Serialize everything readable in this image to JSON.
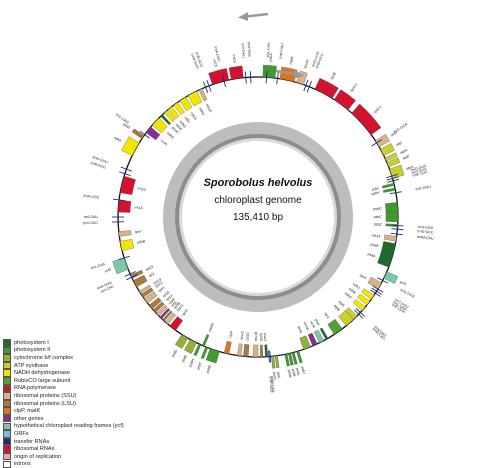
{
  "center": {
    "species": "Sporobolus helvolus",
    "subtitle": "chloroplast genome",
    "length": "135,410 bp"
  },
  "legend": [
    {
      "label": "photosystem I",
      "color": "#1e6b2a"
    },
    {
      "label": "photosystem II",
      "color": "#3f9a2f"
    },
    {
      "label": "cytochrome b/f complex",
      "color": "#8fb23a"
    },
    {
      "label": "ATP synthase",
      "color": "#c9cf2f"
    },
    {
      "label": "NADH dehydrogenase",
      "color": "#f2e600"
    },
    {
      "label": "RubisCO large subunit",
      "color": "#52a233"
    },
    {
      "label": "RNA polymerase",
      "color": "#d1132f"
    },
    {
      "label": "ribosomal proteins (SSU)",
      "color": "#d9b28b"
    },
    {
      "label": "ribosomal proteins (LSU)",
      "color": "#a67a40"
    },
    {
      "label": "clpP, matK",
      "color": "#e4721d"
    },
    {
      "label": "other genes",
      "color": "#8b2c8e"
    },
    {
      "label": "hypothetical chloroplast reading frames (ycf)",
      "color": "#7ec7a8"
    },
    {
      "label": "ORFs",
      "color": "#83b8df"
    },
    {
      "label": "transfer RNAs",
      "color": "#1c2a86"
    },
    {
      "label": "ribosomal RNAs",
      "color": "#d1132f"
    },
    {
      "label": "origin of replication",
      "color": "#f0a0a8"
    },
    {
      "label": "introns",
      "color": "#ffffff"
    }
  ],
  "genes": [
    {
      "name": "psbA",
      "a": 2,
      "w": 5,
      "out": true,
      "color": "#3f9a2f"
    },
    {
      "name": "matK",
      "a": 9,
      "w": 6,
      "out": true,
      "color": "#e4721d"
    },
    {
      "name": "rps16",
      "a": 16,
      "w": 3,
      "out": true,
      "color": "#d9b28b"
    },
    {
      "name": "rpoB",
      "a": 24,
      "w": 8,
      "out": true,
      "color": "#d1132f"
    },
    {
      "name": "rpoC1",
      "a": 33,
      "w": 7,
      "out": true,
      "color": "#d1132f"
    },
    {
      "name": "rpoC2",
      "a": 42,
      "w": 12,
      "out": true,
      "color": "#d1132f"
    },
    {
      "name": "rps2",
      "a": 57,
      "w": 3,
      "out": true,
      "color": "#d9b28b"
    },
    {
      "name": "atpI",
      "a": 61,
      "w": 3,
      "out": true,
      "color": "#c9cf2f"
    },
    {
      "name": "atpH",
      "a": 65,
      "w": 1.5,
      "out": true,
      "color": "#c9cf2f"
    },
    {
      "name": "atpF",
      "a": 67,
      "w": 2,
      "out": true,
      "color": "#c9cf2f"
    },
    {
      "name": "atpA",
      "a": 70,
      "w": 4,
      "out": true,
      "color": "#c9cf2f"
    },
    {
      "name": "psbI",
      "a": 76,
      "w": 1,
      "out": false,
      "color": "#3f9a2f"
    },
    {
      "name": "psbK",
      "a": 78,
      "w": 1,
      "out": false,
      "color": "#3f9a2f"
    },
    {
      "name": "psbD",
      "a": 84,
      "w": 4,
      "out": false,
      "color": "#3f9a2f"
    },
    {
      "name": "psbC",
      "a": 88,
      "w": 4,
      "out": false,
      "color": "#3f9a2f"
    },
    {
      "name": "psbZ",
      "a": 93,
      "w": 1,
      "out": false,
      "color": "#3f9a2f"
    },
    {
      "name": "rps14",
      "a": 98,
      "w": 2,
      "out": false,
      "color": "#d9b28b"
    },
    {
      "name": "psaB",
      "a": 101,
      "w": 5,
      "out": false,
      "color": "#1e6b2a"
    },
    {
      "name": "psaA",
      "a": 106,
      "w": 5,
      "out": false,
      "color": "#1e6b2a"
    },
    {
      "name": "ycf3",
      "a": 113,
      "w": 3,
      "out": true,
      "color": "#7ec7a8"
    },
    {
      "name": "rps4",
      "a": 118,
      "w": 3,
      "out": false,
      "color": "#d9b28b"
    },
    {
      "name": "ndhJ",
      "a": 124,
      "w": 2,
      "out": false,
      "color": "#f2e600"
    },
    {
      "name": "ndhK",
      "a": 127,
      "w": 2,
      "out": false,
      "color": "#f2e600"
    },
    {
      "name": "ndhC",
      "a": 130,
      "w": 2,
      "out": false,
      "color": "#f2e600"
    },
    {
      "name": "atpE",
      "a": 135,
      "w": 2,
      "out": false,
      "color": "#c9cf2f"
    },
    {
      "name": "atpB",
      "a": 137,
      "w": 4,
      "out": false,
      "color": "#c9cf2f"
    },
    {
      "name": "rbcL",
      "a": 143,
      "w": 4,
      "out": false,
      "color": "#52a233"
    },
    {
      "name": "psaI",
      "a": 150,
      "w": 1,
      "out": false,
      "color": "#1e6b2a"
    },
    {
      "name": "ycf4",
      "a": 152,
      "w": 2,
      "out": false,
      "color": "#7ec7a8"
    },
    {
      "name": "cemA",
      "a": 155,
      "w": 2,
      "out": false,
      "color": "#8b2c8e"
    },
    {
      "name": "petA",
      "a": 158,
      "w": 3,
      "out": false,
      "color": "#8fb23a"
    },
    {
      "name": "psbJ",
      "a": 163,
      "w": 1,
      "out": true,
      "color": "#3f9a2f"
    },
    {
      "name": "psbL",
      "a": 165,
      "w": 1,
      "out": true,
      "color": "#3f9a2f"
    },
    {
      "name": "psbF",
      "a": 166.5,
      "w": 1,
      "out": true,
      "color": "#3f9a2f"
    },
    {
      "name": "psbE",
      "a": 168,
      "w": 1,
      "out": true,
      "color": "#3f9a2f"
    },
    {
      "name": "petL",
      "a": 172,
      "w": 1,
      "out": true,
      "color": "#8fb23a"
    },
    {
      "name": "petG",
      "a": 173.5,
      "w": 1,
      "out": true,
      "color": "#8fb23a"
    },
    {
      "name": "psaJ",
      "a": 176,
      "w": 1,
      "out": false,
      "color": "#1e6b2a"
    },
    {
      "name": "rpl33",
      "a": 178,
      "w": 1,
      "out": false,
      "color": "#a67a40"
    },
    {
      "name": "rps18",
      "a": 180,
      "w": 2,
      "out": false,
      "color": "#d9b28b"
    },
    {
      "name": "rpl20",
      "a": 184,
      "w": 2,
      "out": false,
      "color": "#a67a40"
    },
    {
      "name": "rps12",
      "a": 187,
      "w": 1.5,
      "out": false,
      "color": "#d9b28b"
    },
    {
      "name": "clpP",
      "a": 192,
      "w": 2,
      "out": false,
      "color": "#e4721d"
    },
    {
      "name": "psbB",
      "a": 196,
      "w": 4,
      "out": true,
      "color": "#3f9a2f"
    },
    {
      "name": "psbT",
      "a": 201,
      "w": 1,
      "out": true,
      "color": "#3f9a2f"
    },
    {
      "name": "psbN",
      "a": 202.5,
      "w": 1,
      "out": false,
      "color": "#3f9a2f"
    },
    {
      "name": "psbH",
      "a": 204,
      "w": 1,
      "out": true,
      "color": "#3f9a2f"
    },
    {
      "name": "petB",
      "a": 206,
      "w": 3,
      "out": true,
      "color": "#8fb23a"
    },
    {
      "name": "petD",
      "a": 210,
      "w": 3,
      "out": true,
      "color": "#8fb23a"
    },
    {
      "name": "rpoA",
      "a": 216,
      "w": 3,
      "out": false,
      "color": "#d1132f"
    },
    {
      "name": "rps11",
      "a": 220,
      "w": 1.5,
      "out": false,
      "color": "#d9b28b"
    },
    {
      "name": "rpl36",
      "a": 222,
      "w": 1,
      "out": false,
      "color": "#a67a40"
    },
    {
      "name": "infA",
      "a": 223.5,
      "w": 1,
      "out": false,
      "color": "#8b2c8e"
    },
    {
      "name": "rps8",
      "a": 225,
      "w": 1.5,
      "out": false,
      "color": "#d9b28b"
    },
    {
      "name": "rpl14",
      "a": 227,
      "w": 1.5,
      "out": false,
      "color": "#a67a40"
    },
    {
      "name": "rpl16",
      "a": 229,
      "w": 2,
      "out": false,
      "color": "#a67a40"
    },
    {
      "name": "rps3",
      "a": 232,
      "w": 2.5,
      "out": false,
      "color": "#d9b28b"
    },
    {
      "name": "rpl22",
      "a": 235,
      "w": 1.5,
      "out": false,
      "color": "#a67a40"
    },
    {
      "name": "rps19",
      "a": 237,
      "w": 1,
      "out": false,
      "color": "#d9b28b"
    },
    {
      "name": "rpl2",
      "a": 240,
      "w": 3,
      "out": false,
      "color": "#a67a40"
    },
    {
      "name": "rpl23",
      "a": 244,
      "w": 1.5,
      "out": false,
      "color": "#a67a40"
    },
    {
      "name": "ycf2",
      "a": 248,
      "w": 5,
      "out": true,
      "color": "#7ec7a8"
    },
    {
      "name": "ndhB",
      "a": 256,
      "w": 4,
      "out": false,
      "color": "#f2e600"
    },
    {
      "name": "rps7",
      "a": 262,
      "w": 2,
      "out": false,
      "color": "#d9b28b"
    },
    {
      "name": "rrn16",
      "a": 272,
      "w": 5,
      "out": false,
      "color": "#d1132f"
    },
    {
      "name": "rrn23",
      "a": 280,
      "w": 7,
      "out": false,
      "color": "#d1132f"
    },
    {
      "name": "ndhF",
      "a": 296,
      "w": 6,
      "out": true,
      "color": "#f2e600"
    },
    {
      "name": "rpl32",
      "a": 304,
      "w": 1.5,
      "out": true,
      "color": "#a67a40"
    },
    {
      "name": "ccsA",
      "a": 307,
      "w": 3,
      "out": false,
      "color": "#8b2c8e"
    },
    {
      "name": "ndhD",
      "a": 311,
      "w": 4,
      "out": false,
      "color": "#f2e600"
    },
    {
      "name": "psaC",
      "a": 316,
      "w": 1,
      "out": false,
      "color": "#1e6b2a"
    },
    {
      "name": "ndhE",
      "a": 318,
      "w": 1.5,
      "out": false,
      "color": "#f2e600"
    },
    {
      "name": "ndhG",
      "a": 320,
      "w": 2,
      "out": false,
      "color": "#f2e600"
    },
    {
      "name": "ndhI",
      "a": 323,
      "w": 2,
      "out": false,
      "color": "#f2e600"
    },
    {
      "name": "ndhA",
      "a": 326,
      "w": 3,
      "out": false,
      "color": "#f2e600"
    },
    {
      "name": "ndhH",
      "a": 330,
      "w": 4,
      "out": false,
      "color": "#f2e600"
    },
    {
      "name": "rps15",
      "a": 335,
      "w": 1.5,
      "out": false,
      "color": "#d9b28b"
    },
    {
      "name": "rrn23",
      "a": 341,
      "w": 7,
      "out": true,
      "color": "#d1132f"
    },
    {
      "name": "rrn16",
      "a": 349,
      "w": 5,
      "out": true,
      "color": "#d1132f"
    }
  ],
  "trnas": [
    {
      "name": "trnK-UUU",
      "a": 8
    },
    {
      "name": "trnQ-UUG",
      "a": 20
    },
    {
      "name": "trnS-GCU",
      "a": 21.5
    },
    {
      "name": "trnC-GCA",
      "a": 58
    },
    {
      "name": "trnD-GUC",
      "a": 73
    },
    {
      "name": "trnY-GUA",
      "a": 74
    },
    {
      "name": "trnE-UUC",
      "a": 75
    },
    {
      "name": "trnT-GGU",
      "a": 80
    },
    {
      "name": "trnS-UGA",
      "a": 93.5
    },
    {
      "name": "trnG-GCC",
      "a": 95
    },
    {
      "name": "trnfM-CAU",
      "a": 97
    },
    {
      "name": "trnS-GGA",
      "a": 117
    },
    {
      "name": "trnT-UGU",
      "a": 121
    },
    {
      "name": "trnL-UAA",
      "a": 122
    },
    {
      "name": "trnF-GAA",
      "a": 123
    },
    {
      "name": "trnV-UAC",
      "a": 133
    },
    {
      "name": "trnM-CAU",
      "a": 134
    },
    {
      "name": "trnW-CCA",
      "a": 175
    },
    {
      "name": "trnP-UGG",
      "a": 175.5
    },
    {
      "name": "trnH-GUG",
      "a": 246
    },
    {
      "name": "trnI-CAU",
      "a": 244.5
    },
    {
      "name": "trnL-CAA",
      "a": 253
    },
    {
      "name": "trnV-GAC",
      "a": 268
    },
    {
      "name": "trnI-GAU",
      "a": 270
    },
    {
      "name": "trnA-UGC",
      "a": 277
    },
    {
      "name": "trnR-ACG",
      "a": 288
    },
    {
      "name": "trnN-GUU",
      "a": 290
    },
    {
      "name": "trnL-UAG",
      "a": 306
    },
    {
      "name": "trnN-GUU",
      "a": 338
    },
    {
      "name": "trnR-ACG",
      "a": 339.5
    },
    {
      "name": "trnA-UGC",
      "a": 346
    },
    {
      "name": "trnI-GAU",
      "a": 355
    },
    {
      "name": "trnV-GAC",
      "a": 357
    },
    {
      "name": "trnL-CAA",
      "a": 3.5
    }
  ]
}
